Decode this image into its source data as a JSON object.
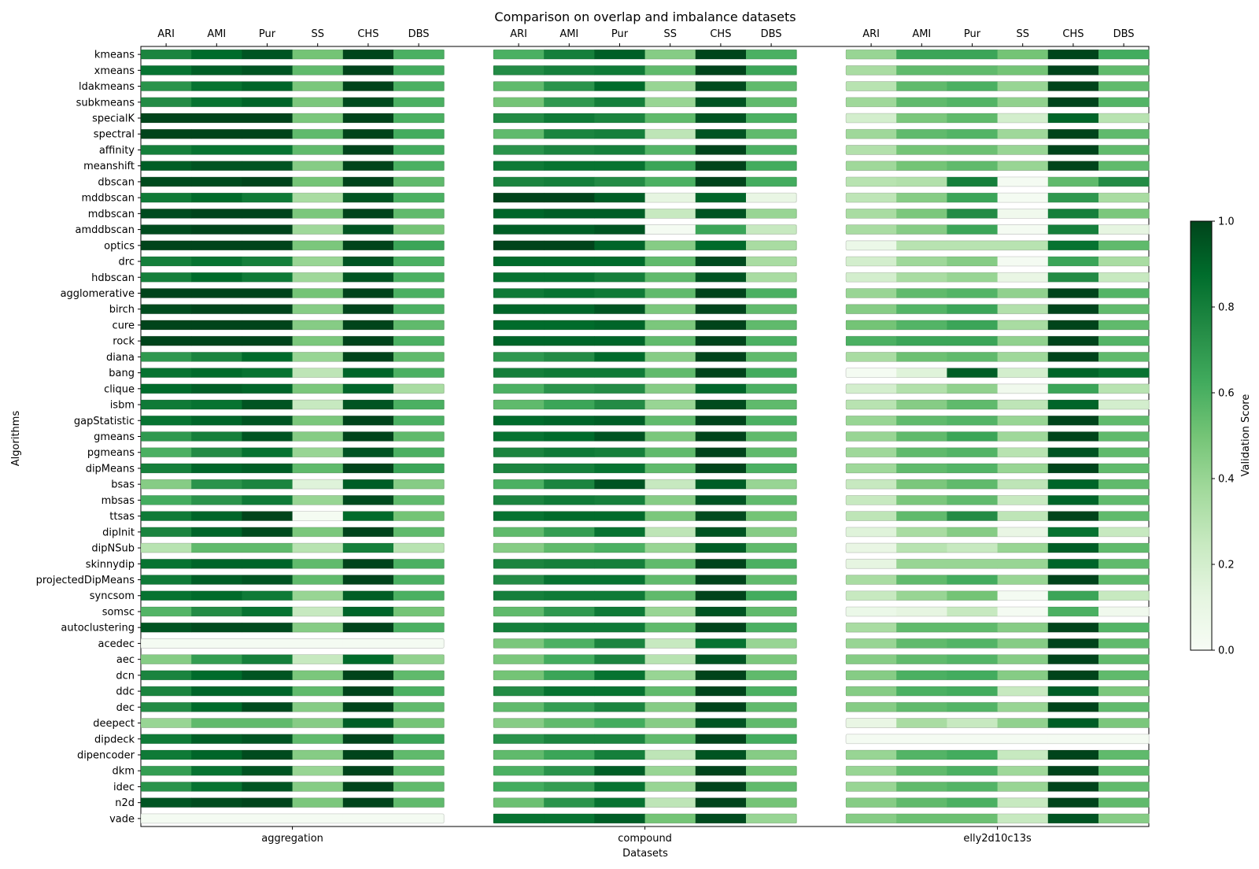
{
  "chart_data": {
    "type": "heatmap",
    "title": "Comparison on overlap and imbalance datasets",
    "xlabel": "Datasets",
    "ylabel": "Algorithms",
    "metrics": [
      "ARI",
      "AMI",
      "Pur",
      "SS",
      "CHS",
      "DBS"
    ],
    "datasets": [
      "aggregation",
      "compound",
      "elly2d10c13s"
    ],
    "algorithms": [
      "kmeans",
      "xmeans",
      "ldakmeans",
      "subkmeans",
      "specialK",
      "spectral",
      "affinity",
      "meanshift",
      "dbscan",
      "mddbscan",
      "mdbscan",
      "amddbscan",
      "optics",
      "drc",
      "hdbscan",
      "agglomerative",
      "birch",
      "cure",
      "rock",
      "diana",
      "bang",
      "clique",
      "isbm",
      "gapStatistic",
      "gmeans",
      "pgmeans",
      "dipMeans",
      "bsas",
      "mbsas",
      "ttsas",
      "dipInit",
      "dipNSub",
      "skinnydip",
      "projectedDipMeans",
      "syncsom",
      "somsc",
      "autoclustering",
      "acedec",
      "aec",
      "dcn",
      "ddc",
      "dec",
      "deepect",
      "dipdeck",
      "dipencoder",
      "dkm",
      "idec",
      "n2d",
      "vade"
    ],
    "colorbar": {
      "label": "Validation Score",
      "range": [
        0,
        1
      ],
      "ticks": [
        "0.0",
        "0.2",
        "0.4",
        "0.6",
        "0.8",
        "1.0"
      ],
      "colormap": "Greens",
      "low_color": "#f7fcf5",
      "high_color": "#00441b"
    },
    "values": {
      "aggregation": [
        [
          0.78,
          0.88,
          0.95,
          0.5,
          1.0,
          0.6
        ],
        [
          0.85,
          0.92,
          0.95,
          0.55,
          1.0,
          0.62
        ],
        [
          0.72,
          0.85,
          0.9,
          0.48,
          1.0,
          0.6
        ],
        [
          0.75,
          0.85,
          0.9,
          0.48,
          0.98,
          0.6
        ],
        [
          1.0,
          1.0,
          1.0,
          0.48,
          1.0,
          0.6
        ],
        [
          1.0,
          1.0,
          1.0,
          0.55,
          1.0,
          0.62
        ],
        [
          0.8,
          0.85,
          0.85,
          0.55,
          1.0,
          0.62
        ],
        [
          0.92,
          0.95,
          0.95,
          0.45,
          1.0,
          0.6
        ],
        [
          0.98,
          0.98,
          1.0,
          0.5,
          1.0,
          0.55
        ],
        [
          0.82,
          0.88,
          0.82,
          0.35,
          0.95,
          0.6
        ],
        [
          0.98,
          1.0,
          1.0,
          0.48,
          1.0,
          0.55
        ],
        [
          0.98,
          1.0,
          1.0,
          0.38,
          0.95,
          0.5
        ],
        [
          1.0,
          1.0,
          1.0,
          0.48,
          1.0,
          0.65
        ],
        [
          0.8,
          0.85,
          0.8,
          0.4,
          0.95,
          0.6
        ],
        [
          0.8,
          0.88,
          0.82,
          0.38,
          0.95,
          0.6
        ],
        [
          1.0,
          1.0,
          1.0,
          0.5,
          1.0,
          0.6
        ],
        [
          0.98,
          1.0,
          1.0,
          0.45,
          1.0,
          0.6
        ],
        [
          1.0,
          1.0,
          1.0,
          0.45,
          1.0,
          0.55
        ],
        [
          1.0,
          1.0,
          1.0,
          0.48,
          1.0,
          0.6
        ],
        [
          0.7,
          0.78,
          0.88,
          0.4,
          1.0,
          0.55
        ],
        [
          0.85,
          0.88,
          0.85,
          0.28,
          0.9,
          0.6
        ],
        [
          0.88,
          0.92,
          0.9,
          0.48,
          0.9,
          0.35
        ],
        [
          0.82,
          0.85,
          0.95,
          0.25,
          0.95,
          0.6
        ],
        [
          0.85,
          0.9,
          0.95,
          0.48,
          1.0,
          0.6
        ],
        [
          0.7,
          0.8,
          0.95,
          0.45,
          1.0,
          0.55
        ],
        [
          0.6,
          0.75,
          0.85,
          0.4,
          0.95,
          0.6
        ],
        [
          0.8,
          0.9,
          0.92,
          0.55,
          1.0,
          0.65
        ],
        [
          0.45,
          0.72,
          0.78,
          0.15,
          0.92,
          0.45
        ],
        [
          0.62,
          0.72,
          0.82,
          0.4,
          0.98,
          0.55
        ],
        [
          0.82,
          0.9,
          1.0,
          0.02,
          0.88,
          0.5
        ],
        [
          0.78,
          0.9,
          0.98,
          0.48,
          1.0,
          0.55
        ],
        [
          0.3,
          0.55,
          0.55,
          0.3,
          0.8,
          0.3
        ],
        [
          0.85,
          0.9,
          0.9,
          0.55,
          1.0,
          0.6
        ],
        [
          0.82,
          0.92,
          0.95,
          0.55,
          1.0,
          0.6
        ],
        [
          0.85,
          0.88,
          0.82,
          0.4,
          0.92,
          0.6
        ],
        [
          0.58,
          0.75,
          0.85,
          0.25,
          0.9,
          0.5
        ],
        [
          0.95,
          0.98,
          0.98,
          0.45,
          1.0,
          0.6
        ],
        [
          0.02,
          0.02,
          0.02,
          0.02,
          0.02,
          0.02
        ],
        [
          0.45,
          0.68,
          0.8,
          0.25,
          0.88,
          0.42
        ],
        [
          0.78,
          0.88,
          0.95,
          0.48,
          1.0,
          0.55
        ],
        [
          0.78,
          0.9,
          0.9,
          0.55,
          1.0,
          0.6
        ],
        [
          0.75,
          0.88,
          0.98,
          0.45,
          1.0,
          0.55
        ],
        [
          0.4,
          0.55,
          0.55,
          0.45,
          0.92,
          0.5
        ],
        [
          0.82,
          0.92,
          0.95,
          0.55,
          1.0,
          0.65
        ],
        [
          0.82,
          0.9,
          0.98,
          0.45,
          1.0,
          0.55
        ],
        [
          0.68,
          0.85,
          0.95,
          0.4,
          1.0,
          0.55
        ],
        [
          0.72,
          0.85,
          0.95,
          0.45,
          1.0,
          0.55
        ],
        [
          0.95,
          0.98,
          1.0,
          0.48,
          1.0,
          0.55
        ],
        [
          0.02,
          0.02,
          0.02,
          0.02,
          0.02,
          0.02
        ]
      ],
      "compound": [
        [
          0.6,
          0.8,
          0.92,
          0.45,
          1.0,
          0.6
        ],
        [
          0.75,
          0.8,
          0.82,
          0.55,
          1.0,
          0.65
        ],
        [
          0.55,
          0.72,
          0.88,
          0.4,
          0.98,
          0.55
        ],
        [
          0.5,
          0.7,
          0.8,
          0.4,
          0.95,
          0.55
        ],
        [
          0.75,
          0.82,
          0.78,
          0.55,
          0.95,
          0.6
        ],
        [
          0.55,
          0.78,
          0.8,
          0.28,
          0.95,
          0.55
        ],
        [
          0.72,
          0.78,
          0.8,
          0.58,
          1.0,
          0.6
        ],
        [
          0.82,
          0.85,
          0.85,
          0.65,
          1.0,
          0.62
        ],
        [
          0.78,
          0.8,
          0.75,
          0.6,
          1.0,
          0.62
        ],
        [
          1.0,
          1.0,
          0.92,
          0.12,
          0.9,
          0.1
        ],
        [
          0.9,
          0.92,
          0.92,
          0.25,
          0.95,
          0.4
        ],
        [
          0.92,
          0.92,
          0.95,
          0.02,
          0.65,
          0.25
        ],
        [
          1.0,
          1.0,
          0.9,
          0.45,
          0.88,
          0.35
        ],
        [
          0.88,
          0.88,
          0.88,
          0.55,
          0.98,
          0.35
        ],
        [
          0.85,
          0.85,
          0.8,
          0.55,
          0.95,
          0.35
        ],
        [
          0.82,
          0.85,
          0.82,
          0.55,
          1.0,
          0.6
        ],
        [
          0.9,
          0.9,
          0.95,
          0.48,
          1.0,
          0.55
        ],
        [
          0.88,
          0.88,
          0.9,
          0.48,
          1.0,
          0.55
        ],
        [
          0.9,
          0.9,
          0.9,
          0.55,
          1.0,
          0.6
        ],
        [
          0.7,
          0.75,
          0.88,
          0.45,
          1.0,
          0.55
        ],
        [
          0.8,
          0.82,
          0.82,
          0.55,
          1.0,
          0.62
        ],
        [
          0.6,
          0.72,
          0.75,
          0.45,
          0.9,
          0.6
        ],
        [
          0.55,
          0.65,
          0.75,
          0.4,
          0.98,
          0.55
        ],
        [
          0.88,
          0.9,
          0.92,
          0.55,
          1.0,
          0.6
        ],
        [
          0.85,
          0.88,
          0.95,
          0.48,
          1.0,
          0.55
        ],
        [
          0.78,
          0.82,
          0.8,
          0.55,
          1.0,
          0.55
        ],
        [
          0.78,
          0.8,
          0.85,
          0.55,
          1.0,
          0.6
        ],
        [
          0.6,
          0.78,
          0.95,
          0.25,
          0.92,
          0.4
        ],
        [
          0.78,
          0.82,
          0.8,
          0.45,
          0.95,
          0.55
        ],
        [
          0.85,
          0.88,
          0.88,
          0.48,
          0.98,
          0.5
        ],
        [
          0.55,
          0.68,
          0.85,
          0.28,
          0.95,
          0.45
        ],
        [
          0.45,
          0.55,
          0.6,
          0.4,
          0.92,
          0.55
        ],
        [
          0.78,
          0.8,
          0.8,
          0.55,
          1.0,
          0.6
        ],
        [
          0.75,
          0.85,
          0.85,
          0.55,
          1.0,
          0.55
        ],
        [
          0.8,
          0.82,
          0.82,
          0.55,
          1.0,
          0.62
        ],
        [
          0.55,
          0.7,
          0.82,
          0.4,
          0.95,
          0.55
        ],
        [
          0.8,
          0.82,
          0.82,
          0.55,
          1.0,
          0.6
        ],
        [
          0.48,
          0.6,
          0.78,
          0.25,
          0.85,
          0.4
        ],
        [
          0.48,
          0.62,
          0.78,
          0.3,
          0.95,
          0.48
        ],
        [
          0.5,
          0.65,
          0.85,
          0.4,
          1.0,
          0.55
        ],
        [
          0.75,
          0.85,
          0.85,
          0.55,
          1.0,
          0.6
        ],
        [
          0.55,
          0.68,
          0.78,
          0.45,
          1.0,
          0.55
        ],
        [
          0.45,
          0.55,
          0.62,
          0.45,
          0.95,
          0.55
        ],
        [
          0.72,
          0.78,
          0.78,
          0.55,
          1.0,
          0.62
        ],
        [
          0.55,
          0.65,
          0.8,
          0.28,
          0.95,
          0.45
        ],
        [
          0.6,
          0.72,
          0.92,
          0.4,
          1.0,
          0.5
        ],
        [
          0.62,
          0.68,
          0.85,
          0.4,
          1.0,
          0.55
        ],
        [
          0.52,
          0.72,
          0.85,
          0.28,
          1.0,
          0.5
        ],
        [
          0.85,
          0.85,
          0.92,
          0.5,
          0.98,
          0.4
        ]
      ],
      "elly2d10c13s": [
        [
          0.4,
          0.65,
          0.65,
          0.5,
          1.0,
          0.62
        ],
        [
          0.35,
          0.55,
          0.55,
          0.5,
          1.0,
          0.55
        ],
        [
          0.3,
          0.55,
          0.6,
          0.4,
          1.0,
          0.55
        ],
        [
          0.38,
          0.55,
          0.58,
          0.42,
          1.0,
          0.58
        ],
        [
          0.2,
          0.48,
          0.55,
          0.2,
          0.9,
          0.3
        ],
        [
          0.38,
          0.55,
          0.58,
          0.38,
          1.0,
          0.55
        ],
        [
          0.32,
          0.5,
          0.52,
          0.4,
          1.0,
          0.55
        ],
        [
          0.38,
          0.5,
          0.55,
          0.4,
          1.0,
          0.55
        ],
        [
          0.3,
          0.32,
          0.8,
          0.02,
          0.55,
          0.75
        ],
        [
          0.28,
          0.45,
          0.65,
          0.02,
          0.7,
          0.35
        ],
        [
          0.35,
          0.48,
          0.75,
          0.05,
          0.8,
          0.48
        ],
        [
          0.35,
          0.45,
          0.65,
          0.02,
          0.8,
          0.12
        ],
        [
          0.08,
          0.3,
          0.3,
          0.3,
          0.85,
          0.55
        ],
        [
          0.2,
          0.38,
          0.45,
          0.02,
          0.65,
          0.35
        ],
        [
          0.2,
          0.35,
          0.4,
          0.1,
          0.75,
          0.25
        ],
        [
          0.4,
          0.55,
          0.58,
          0.42,
          1.0,
          0.58
        ],
        [
          0.45,
          0.58,
          0.65,
          0.32,
          1.0,
          0.55
        ],
        [
          0.5,
          0.58,
          0.65,
          0.35,
          1.0,
          0.55
        ],
        [
          0.6,
          0.65,
          0.65,
          0.42,
          1.0,
          0.58
        ],
        [
          0.35,
          0.52,
          0.55,
          0.38,
          1.0,
          0.55
        ],
        [
          0.02,
          0.15,
          0.92,
          0.2,
          0.9,
          0.85
        ],
        [
          0.2,
          0.32,
          0.42,
          0.05,
          0.65,
          0.3
        ],
        [
          0.3,
          0.45,
          0.55,
          0.28,
          0.9,
          0.2
        ],
        [
          0.4,
          0.55,
          0.58,
          0.4,
          1.0,
          0.55
        ],
        [
          0.4,
          0.55,
          0.65,
          0.38,
          1.0,
          0.55
        ],
        [
          0.38,
          0.55,
          0.58,
          0.3,
          0.95,
          0.55
        ],
        [
          0.38,
          0.55,
          0.58,
          0.4,
          1.0,
          0.55
        ],
        [
          0.25,
          0.48,
          0.55,
          0.28,
          0.9,
          0.55
        ],
        [
          0.25,
          0.48,
          0.55,
          0.25,
          0.9,
          0.55
        ],
        [
          0.28,
          0.55,
          0.75,
          0.28,
          1.0,
          0.55
        ],
        [
          0.15,
          0.35,
          0.45,
          0.1,
          0.85,
          0.25
        ],
        [
          0.1,
          0.3,
          0.25,
          0.4,
          0.92,
          0.55
        ],
        [
          0.12,
          0.4,
          0.4,
          0.4,
          0.9,
          0.55
        ],
        [
          0.35,
          0.55,
          0.62,
          0.4,
          1.0,
          0.55
        ],
        [
          0.25,
          0.4,
          0.5,
          0.02,
          0.65,
          0.25
        ],
        [
          0.08,
          0.12,
          0.25,
          0.02,
          0.6,
          0.05
        ],
        [
          0.35,
          0.55,
          0.55,
          0.45,
          1.0,
          0.58
        ],
        [
          0.4,
          0.55,
          0.58,
          0.45,
          1.0,
          0.55
        ],
        [
          0.45,
          0.55,
          0.58,
          0.45,
          1.0,
          0.55
        ],
        [
          0.45,
          0.6,
          0.62,
          0.45,
          1.0,
          0.55
        ],
        [
          0.45,
          0.6,
          0.62,
          0.25,
          0.92,
          0.48
        ],
        [
          0.45,
          0.55,
          0.58,
          0.4,
          1.0,
          0.55
        ],
        [
          0.1,
          0.35,
          0.25,
          0.42,
          0.92,
          0.48
        ],
        [
          0.02,
          0.02,
          0.02,
          0.02,
          0.02,
          0.02
        ],
        [
          0.4,
          0.58,
          0.62,
          0.25,
          1.0,
          0.55
        ],
        [
          0.4,
          0.55,
          0.6,
          0.38,
          1.0,
          0.55
        ],
        [
          0.4,
          0.55,
          0.58,
          0.4,
          1.0,
          0.55
        ],
        [
          0.45,
          0.55,
          0.6,
          0.25,
          1.0,
          0.55
        ],
        [
          0.45,
          0.52,
          0.52,
          0.25,
          0.95,
          0.45
        ]
      ]
    }
  }
}
